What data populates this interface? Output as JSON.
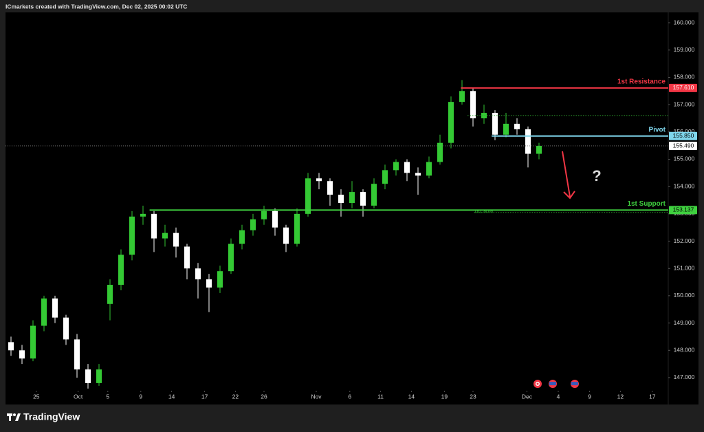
{
  "header": "ICmarkets created with TradingView.com, Dec 02, 2025 00:02 UTC",
  "footer": "TradingView",
  "chart_data": {
    "type": "candlestick",
    "up_color": "#34c934",
    "down_color": "#ffffff",
    "annotation": "?",
    "x": [
      0,
      1,
      2,
      3,
      4,
      5,
      6,
      7,
      8,
      9,
      10,
      11,
      12,
      13,
      14,
      15,
      16,
      17,
      18,
      19,
      20,
      21,
      22,
      23,
      24,
      25,
      26,
      27,
      28,
      29,
      30,
      31,
      32,
      33,
      34,
      35,
      36,
      37,
      38,
      39,
      40,
      41,
      42,
      43,
      44,
      45,
      46,
      47,
      48
    ],
    "open": [
      148.3,
      148.0,
      147.7,
      148.9,
      149.9,
      149.2,
      148.4,
      147.3,
      146.8,
      149.7,
      150.4,
      151.5,
      152.9,
      153.0,
      152.1,
      152.3,
      151.8,
      151.0,
      150.6,
      150.3,
      150.9,
      151.9,
      152.4,
      152.8,
      153.1,
      152.5,
      151.9,
      153.0,
      154.3,
      154.2,
      153.7,
      153.4,
      153.8,
      153.3,
      154.1,
      154.6,
      154.9,
      154.5,
      154.4,
      154.9,
      155.6,
      157.1,
      157.5,
      156.5,
      156.7,
      155.9,
      156.3,
      156.1,
      155.2
    ],
    "high": [
      148.5,
      148.2,
      149.1,
      150.0,
      150.0,
      149.3,
      148.6,
      147.5,
      147.5,
      150.6,
      151.7,
      153.1,
      153.3,
      153.1,
      152.6,
      152.5,
      151.9,
      151.2,
      150.8,
      151.1,
      152.1,
      152.6,
      153.0,
      153.3,
      153.2,
      152.6,
      153.2,
      154.5,
      154.5,
      154.3,
      153.9,
      154.2,
      153.9,
      154.3,
      154.8,
      155.0,
      155.0,
      154.7,
      155.1,
      155.9,
      157.3,
      157.9,
      157.6,
      157.0,
      156.8,
      156.7,
      156.5,
      156.2,
      155.6
    ],
    "low": [
      147.8,
      147.5,
      147.6,
      148.7,
      149.0,
      148.2,
      147.0,
      146.6,
      146.7,
      149.1,
      150.2,
      151.3,
      152.6,
      151.6,
      151.8,
      151.4,
      150.6,
      149.9,
      149.4,
      150.1,
      150.8,
      151.7,
      152.2,
      152.6,
      152.2,
      151.6,
      151.8,
      152.9,
      153.9,
      153.3,
      152.9,
      153.2,
      152.9,
      153.2,
      153.9,
      154.4,
      154.2,
      153.7,
      154.3,
      154.8,
      155.4,
      157.0,
      156.2,
      156.3,
      155.7,
      155.8,
      155.9,
      154.7,
      155.0
    ],
    "close": [
      148.0,
      147.7,
      148.9,
      149.9,
      149.2,
      148.4,
      147.3,
      146.8,
      147.3,
      150.4,
      151.5,
      152.9,
      153.0,
      152.1,
      152.3,
      151.8,
      151.0,
      150.6,
      150.3,
      150.9,
      151.9,
      152.4,
      152.8,
      153.1,
      152.5,
      151.9,
      153.0,
      154.3,
      154.2,
      153.7,
      153.4,
      153.8,
      153.3,
      154.1,
      154.6,
      154.9,
      154.5,
      154.4,
      154.9,
      155.6,
      157.1,
      157.5,
      156.5,
      156.7,
      155.9,
      156.3,
      156.1,
      155.2,
      155.49
    ],
    "xlim": [
      -0.5,
      59.75
    ],
    "ylim": [
      146.52,
      160.38
    ],
    "xticks": [
      {
        "value": 2.3,
        "label": "25"
      },
      {
        "value": 6.1,
        "label": "Oct"
      },
      {
        "value": 8.8,
        "label": "5"
      },
      {
        "value": 11.8,
        "label": "9"
      },
      {
        "value": 14.6,
        "label": "14"
      },
      {
        "value": 17.6,
        "label": "17"
      },
      {
        "value": 20.4,
        "label": "22"
      },
      {
        "value": 23,
        "label": "26"
      },
      {
        "value": 27.75,
        "label": "Nov"
      },
      {
        "value": 30.8,
        "label": "6"
      },
      {
        "value": 33.6,
        "label": "11"
      },
      {
        "value": 36.4,
        "label": "14"
      },
      {
        "value": 39.4,
        "label": "19"
      },
      {
        "value": 42,
        "label": "23"
      },
      {
        "value": 46.9,
        "label": "Dec"
      },
      {
        "value": 49.75,
        "label": "4"
      },
      {
        "value": 52.6,
        "label": "9"
      },
      {
        "value": 55.4,
        "label": "12"
      },
      {
        "value": 58.3,
        "label": "17"
      }
    ],
    "yticks": [
      {
        "value": 160,
        "label": "160.000"
      },
      {
        "value": 159,
        "label": "159.000"
      },
      {
        "value": 158,
        "label": "158.000"
      },
      {
        "value": 157,
        "label": "157.000"
      },
      {
        "value": 156,
        "label": "156.000"
      },
      {
        "value": 155,
        "label": "155.000"
      },
      {
        "value": 154,
        "label": "154.000"
      },
      {
        "value": 153,
        "label": "153.000"
      },
      {
        "value": 152,
        "label": "152.000"
      },
      {
        "value": 151,
        "label": "151.000"
      },
      {
        "value": 150,
        "label": "150.000"
      },
      {
        "value": 149,
        "label": "149.000"
      },
      {
        "value": 148,
        "label": "148.000"
      },
      {
        "value": 147,
        "label": "147.000"
      }
    ],
    "levels": [
      {
        "name": "1st Resistance",
        "value": 157.61,
        "label": "157.610",
        "color": "#f23645",
        "start": 40.9
      },
      {
        "name": "Pivot",
        "value": 155.85,
        "label": "155.850",
        "color": "#7fd6ec",
        "start": 43.7
      },
      {
        "name": "1st Support",
        "value": 153.137,
        "label": "153.137",
        "color": "#3fd13f",
        "start": 12.6
      }
    ],
    "fib_lines": [
      {
        "value": 156.6,
        "start": 41.5,
        "color": "#2fa82f"
      },
      {
        "value": 153.05,
        "label": "161.80%",
        "start": 42.1,
        "color": "#2fa82f"
      }
    ],
    "current_price": {
      "value": 155.49,
      "label": "155.490"
    }
  }
}
